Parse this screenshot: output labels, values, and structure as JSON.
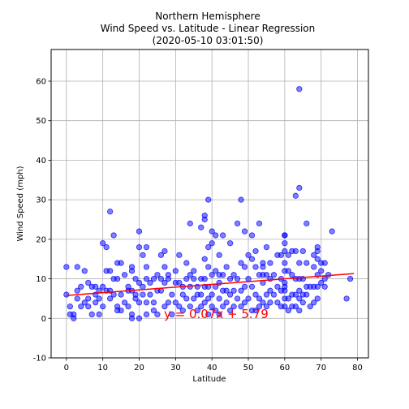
{
  "chart_data": {
    "type": "scatter",
    "title_lines": [
      "Northern Hemisphere",
      "Wind Speed vs. Latitude - Linear Regression",
      "(2020-05-10 03:01:50)"
    ],
    "xlabel": "Latitude",
    "ylabel": "Wind Speed (mph)",
    "xlim": [
      -4.2,
      83
    ],
    "ylim": [
      -10,
      68
    ],
    "xticks": [
      0,
      10,
      20,
      30,
      40,
      50,
      60,
      70,
      80
    ],
    "yticks": [
      -10,
      0,
      10,
      20,
      30,
      40,
      50,
      60
    ],
    "grid": true,
    "colors": {
      "points": "#0000ff",
      "line": "#ff0000",
      "equation": "#ff0000"
    },
    "regression": {
      "slope": 0.07,
      "intercept": 5.79,
      "x_range": [
        0,
        79
      ]
    },
    "equation": "y = 0.07x + 5.79",
    "points": [
      [
        0,
        13
      ],
      [
        0,
        6
      ],
      [
        1,
        3
      ],
      [
        1,
        1
      ],
      [
        2,
        1
      ],
      [
        2,
        0
      ],
      [
        3,
        13
      ],
      [
        3,
        7
      ],
      [
        3,
        5
      ],
      [
        4,
        8
      ],
      [
        4,
        3
      ],
      [
        5,
        12
      ],
      [
        5,
        4
      ],
      [
        6,
        9
      ],
      [
        6,
        5
      ],
      [
        6,
        3
      ],
      [
        7,
        1
      ],
      [
        7,
        8
      ],
      [
        8,
        8
      ],
      [
        8,
        6
      ],
      [
        8,
        4
      ],
      [
        9,
        7
      ],
      [
        9,
        1
      ],
      [
        9,
        5
      ],
      [
        10,
        19
      ],
      [
        10,
        8
      ],
      [
        10,
        3
      ],
      [
        11,
        18
      ],
      [
        11,
        12
      ],
      [
        11,
        7
      ],
      [
        12,
        27
      ],
      [
        12,
        12
      ],
      [
        12,
        7
      ],
      [
        12,
        5
      ],
      [
        13,
        21
      ],
      [
        13,
        10
      ],
      [
        13,
        6
      ],
      [
        14,
        14
      ],
      [
        14,
        10
      ],
      [
        14,
        3
      ],
      [
        14,
        2
      ],
      [
        15,
        14
      ],
      [
        15,
        6
      ],
      [
        15,
        2
      ],
      [
        16,
        11
      ],
      [
        16,
        4
      ],
      [
        17,
        7
      ],
      [
        17,
        3
      ],
      [
        17,
        8
      ],
      [
        18,
        13
      ],
      [
        18,
        12
      ],
      [
        18,
        7
      ],
      [
        18,
        1
      ],
      [
        18,
        0
      ],
      [
        19,
        10
      ],
      [
        19,
        6
      ],
      [
        19,
        5
      ],
      [
        20,
        22
      ],
      [
        20,
        18
      ],
      [
        20,
        9
      ],
      [
        20,
        4
      ],
      [
        20,
        0
      ],
      [
        21,
        16
      ],
      [
        21,
        8
      ],
      [
        21,
        6
      ],
      [
        22,
        18
      ],
      [
        22,
        13
      ],
      [
        22,
        10
      ],
      [
        22,
        4
      ],
      [
        22,
        1
      ],
      [
        23,
        9
      ],
      [
        23,
        6
      ],
      [
        24,
        10
      ],
      [
        24,
        4
      ],
      [
        24,
        2
      ],
      [
        25,
        11
      ],
      [
        25,
        7
      ],
      [
        25,
        1
      ],
      [
        26,
        16
      ],
      [
        26,
        10
      ],
      [
        26,
        7
      ],
      [
        27,
        17
      ],
      [
        27,
        13
      ],
      [
        27,
        9
      ],
      [
        27,
        3
      ],
      [
        28,
        11
      ],
      [
        28,
        10
      ],
      [
        28,
        4
      ],
      [
        29,
        6
      ],
      [
        29,
        1
      ],
      [
        30,
        12
      ],
      [
        30,
        9
      ],
      [
        30,
        4
      ],
      [
        31,
        16
      ],
      [
        31,
        9
      ],
      [
        31,
        3
      ],
      [
        32,
        8
      ],
      [
        32,
        6
      ],
      [
        32,
        2
      ],
      [
        33,
        14
      ],
      [
        33,
        10
      ],
      [
        33,
        5
      ],
      [
        34,
        24
      ],
      [
        34,
        11
      ],
      [
        34,
        8
      ],
      [
        34,
        3
      ],
      [
        35,
        12
      ],
      [
        35,
        10
      ],
      [
        35,
        5
      ],
      [
        36,
        8
      ],
      [
        36,
        6
      ],
      [
        36,
        2
      ],
      [
        37,
        23
      ],
      [
        37,
        10
      ],
      [
        37,
        6
      ],
      [
        37,
        3
      ],
      [
        38,
        26
      ],
      [
        38,
        25
      ],
      [
        38,
        15
      ],
      [
        38,
        10
      ],
      [
        38,
        8
      ],
      [
        38,
        4
      ],
      [
        39,
        30
      ],
      [
        39,
        18
      ],
      [
        39,
        13
      ],
      [
        39,
        8
      ],
      [
        39,
        5
      ],
      [
        39,
        1
      ],
      [
        40,
        22
      ],
      [
        40,
        19
      ],
      [
        40,
        11
      ],
      [
        40,
        6
      ],
      [
        40,
        3
      ],
      [
        41,
        21
      ],
      [
        41,
        12
      ],
      [
        41,
        8
      ],
      [
        41,
        2
      ],
      [
        42,
        16
      ],
      [
        42,
        11
      ],
      [
        42,
        9
      ],
      [
        42,
        5
      ],
      [
        42,
        1
      ],
      [
        43,
        21
      ],
      [
        43,
        11
      ],
      [
        43,
        7
      ],
      [
        43,
        3
      ],
      [
        44,
        13
      ],
      [
        44,
        7
      ],
      [
        44,
        4
      ],
      [
        45,
        19
      ],
      [
        45,
        10
      ],
      [
        45,
        6
      ],
      [
        45,
        2
      ],
      [
        46,
        11
      ],
      [
        46,
        7
      ],
      [
        46,
        3
      ],
      [
        47,
        24
      ],
      [
        47,
        10
      ],
      [
        47,
        5
      ],
      [
        48,
        30
      ],
      [
        48,
        14
      ],
      [
        48,
        7
      ],
      [
        48,
        3
      ],
      [
        49,
        22
      ],
      [
        49,
        13
      ],
      [
        49,
        8
      ],
      [
        49,
        4
      ],
      [
        50,
        16
      ],
      [
        50,
        10
      ],
      [
        50,
        5
      ],
      [
        51,
        21
      ],
      [
        51,
        15
      ],
      [
        51,
        8
      ],
      [
        51,
        2
      ],
      [
        52,
        17
      ],
      [
        52,
        13
      ],
      [
        52,
        6
      ],
      [
        52,
        2
      ],
      [
        53,
        24
      ],
      [
        53,
        11
      ],
      [
        53,
        5
      ],
      [
        53,
        3
      ],
      [
        54,
        14
      ],
      [
        54,
        13
      ],
      [
        54,
        11
      ],
      [
        54,
        9
      ],
      [
        54,
        4
      ],
      [
        55,
        18
      ],
      [
        55,
        11
      ],
      [
        55,
        6
      ],
      [
        55,
        3
      ],
      [
        56,
        14
      ],
      [
        56,
        10
      ],
      [
        56,
        7
      ],
      [
        56,
        4
      ],
      [
        57,
        11
      ],
      [
        57,
        6
      ],
      [
        58,
        16
      ],
      [
        58,
        8
      ],
      [
        58,
        4
      ],
      [
        59,
        16
      ],
      [
        59,
        10
      ],
      [
        59,
        7
      ],
      [
        59,
        3
      ],
      [
        60,
        21
      ],
      [
        60,
        21
      ],
      [
        60,
        19
      ],
      [
        60,
        17
      ],
      [
        60,
        14
      ],
      [
        60,
        12
      ],
      [
        60,
        9
      ],
      [
        60,
        8
      ],
      [
        60,
        7
      ],
      [
        60,
        5
      ],
      [
        60,
        3
      ],
      [
        61,
        16
      ],
      [
        61,
        12
      ],
      [
        61,
        5
      ],
      [
        61,
        2
      ],
      [
        62,
        17
      ],
      [
        62,
        11
      ],
      [
        62,
        6
      ],
      [
        62,
        3
      ],
      [
        63,
        31
      ],
      [
        63,
        17
      ],
      [
        63,
        10
      ],
      [
        63,
        6
      ],
      [
        63,
        3
      ],
      [
        64,
        58
      ],
      [
        64,
        33
      ],
      [
        64,
        14
      ],
      [
        64,
        10
      ],
      [
        64,
        7
      ],
      [
        64,
        5
      ],
      [
        64,
        2
      ],
      [
        65,
        17
      ],
      [
        65,
        10
      ],
      [
        65,
        6
      ],
      [
        65,
        4
      ],
      [
        66,
        24
      ],
      [
        66,
        14
      ],
      [
        66,
        8
      ],
      [
        66,
        6
      ],
      [
        67,
        8
      ],
      [
        67,
        3
      ],
      [
        68,
        16
      ],
      [
        68,
        13
      ],
      [
        68,
        8
      ],
      [
        68,
        4
      ],
      [
        69,
        18
      ],
      [
        69,
        17
      ],
      [
        69,
        15
      ],
      [
        69,
        11
      ],
      [
        69,
        8
      ],
      [
        69,
        5
      ],
      [
        70,
        14
      ],
      [
        70,
        12
      ],
      [
        70,
        9
      ],
      [
        71,
        14
      ],
      [
        71,
        10
      ],
      [
        71,
        8
      ],
      [
        72,
        11
      ],
      [
        73,
        22
      ],
      [
        77,
        5
      ],
      [
        78,
        10
      ]
    ]
  }
}
